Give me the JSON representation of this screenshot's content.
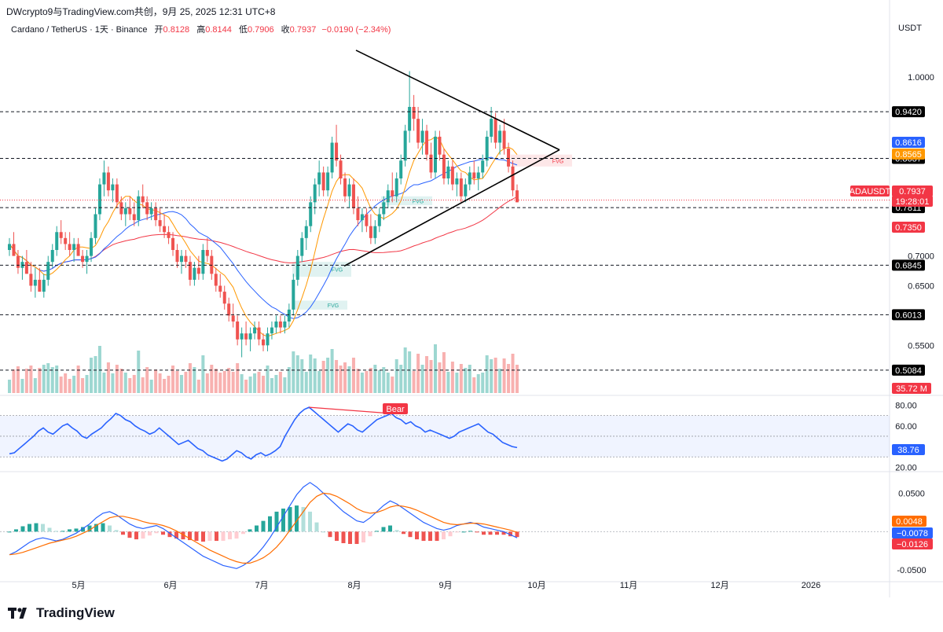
{
  "header": {
    "top_title": "DWcrypto9与TradingView.com共创，9月 25, 2025 12:31 UTC+8",
    "symbol_desc": "Cardano / TetherUS · 1天 · Binance",
    "open_label": "开",
    "open_value": "0.8128",
    "high_label": "高",
    "high_value": "0.8144",
    "low_label": "低",
    "low_value": "0.7906",
    "close_label": "收",
    "close_value": "0.7937",
    "change_value": "−0.0190 (−2.34%)",
    "currency": "USDT"
  },
  "brand": {
    "name": "TradingView",
    "icon": "tradingview-logo-icon"
  },
  "colors": {
    "up": "#26a69a",
    "down": "#ef5350",
    "ma_slow": "#f23645",
    "ma_mid": "#2962ff",
    "ma_fast": "#ff9800",
    "rsi": "#2962ff"
  },
  "chart_data": [
    {
      "type": "candlestick",
      "symbol": "ADAUSDT",
      "x_tick_labels": [
        "5月",
        "6月",
        "7月",
        "8月",
        "9月",
        "10月",
        "11月",
        "12月",
        "2026"
      ],
      "ylim": [
        0.47,
        1.07
      ],
      "y_tick_labels": [
        "1.0000",
        "0.7000",
        "0.6500",
        "0.5500"
      ],
      "ohlc": [
        [
          0.71,
          0.73,
          0.7,
          0.72
        ],
        [
          0.72,
          0.74,
          0.7,
          0.7
        ],
        [
          0.7,
          0.71,
          0.67,
          0.68
        ],
        [
          0.68,
          0.7,
          0.66,
          0.69
        ],
        [
          0.69,
          0.71,
          0.67,
          0.67
        ],
        [
          0.67,
          0.69,
          0.64,
          0.65
        ],
        [
          0.65,
          0.68,
          0.63,
          0.66
        ],
        [
          0.66,
          0.68,
          0.64,
          0.64
        ],
        [
          0.64,
          0.67,
          0.63,
          0.66
        ],
        [
          0.66,
          0.7,
          0.65,
          0.69
        ],
        [
          0.69,
          0.72,
          0.68,
          0.71
        ],
        [
          0.71,
          0.75,
          0.7,
          0.74
        ],
        [
          0.74,
          0.76,
          0.72,
          0.73
        ],
        [
          0.73,
          0.74,
          0.71,
          0.72
        ],
        [
          0.72,
          0.74,
          0.7,
          0.71
        ],
        [
          0.71,
          0.73,
          0.69,
          0.72
        ],
        [
          0.72,
          0.73,
          0.7,
          0.7
        ],
        [
          0.7,
          0.71,
          0.68,
          0.69
        ],
        [
          0.69,
          0.71,
          0.67,
          0.7
        ],
        [
          0.7,
          0.74,
          0.69,
          0.73
        ],
        [
          0.73,
          0.78,
          0.72,
          0.77
        ],
        [
          0.77,
          0.83,
          0.76,
          0.82
        ],
        [
          0.82,
          0.86,
          0.8,
          0.84
        ],
        [
          0.84,
          0.85,
          0.8,
          0.81
        ],
        [
          0.81,
          0.83,
          0.79,
          0.82
        ],
        [
          0.82,
          0.83,
          0.78,
          0.79
        ],
        [
          0.79,
          0.8,
          0.76,
          0.77
        ],
        [
          0.77,
          0.79,
          0.75,
          0.78
        ],
        [
          0.78,
          0.8,
          0.76,
          0.77
        ],
        [
          0.77,
          0.79,
          0.75,
          0.76
        ],
        [
          0.76,
          0.81,
          0.75,
          0.8
        ],
        [
          0.8,
          0.82,
          0.78,
          0.79
        ],
        [
          0.79,
          0.8,
          0.76,
          0.77
        ],
        [
          0.77,
          0.79,
          0.76,
          0.78
        ],
        [
          0.78,
          0.79,
          0.75,
          0.76
        ],
        [
          0.76,
          0.78,
          0.74,
          0.75
        ],
        [
          0.75,
          0.77,
          0.73,
          0.74
        ],
        [
          0.74,
          0.75,
          0.72,
          0.73
        ],
        [
          0.73,
          0.74,
          0.7,
          0.71
        ],
        [
          0.71,
          0.72,
          0.68,
          0.69
        ],
        [
          0.69,
          0.71,
          0.67,
          0.7
        ],
        [
          0.7,
          0.71,
          0.68,
          0.69
        ],
        [
          0.69,
          0.7,
          0.65,
          0.66
        ],
        [
          0.66,
          0.69,
          0.65,
          0.68
        ],
        [
          0.68,
          0.7,
          0.66,
          0.67
        ],
        [
          0.67,
          0.72,
          0.66,
          0.71
        ],
        [
          0.71,
          0.73,
          0.69,
          0.7
        ],
        [
          0.7,
          0.71,
          0.66,
          0.67
        ],
        [
          0.67,
          0.68,
          0.64,
          0.65
        ],
        [
          0.65,
          0.67,
          0.63,
          0.64
        ],
        [
          0.64,
          0.65,
          0.61,
          0.62
        ],
        [
          0.62,
          0.63,
          0.59,
          0.6
        ],
        [
          0.6,
          0.62,
          0.58,
          0.59
        ],
        [
          0.59,
          0.6,
          0.55,
          0.56
        ],
        [
          0.56,
          0.58,
          0.53,
          0.57
        ],
        [
          0.57,
          0.59,
          0.55,
          0.56
        ],
        [
          0.56,
          0.58,
          0.54,
          0.57
        ],
        [
          0.57,
          0.59,
          0.56,
          0.58
        ],
        [
          0.58,
          0.59,
          0.55,
          0.56
        ],
        [
          0.56,
          0.57,
          0.54,
          0.55
        ],
        [
          0.55,
          0.58,
          0.54,
          0.57
        ],
        [
          0.57,
          0.59,
          0.56,
          0.58
        ],
        [
          0.58,
          0.6,
          0.57,
          0.59
        ],
        [
          0.59,
          0.6,
          0.57,
          0.58
        ],
        [
          0.58,
          0.6,
          0.57,
          0.59
        ],
        [
          0.59,
          0.62,
          0.58,
          0.61
        ],
        [
          0.61,
          0.67,
          0.6,
          0.66
        ],
        [
          0.66,
          0.71,
          0.65,
          0.7
        ],
        [
          0.7,
          0.74,
          0.69,
          0.73
        ],
        [
          0.73,
          0.76,
          0.71,
          0.75
        ],
        [
          0.75,
          0.8,
          0.74,
          0.79
        ],
        [
          0.79,
          0.83,
          0.77,
          0.82
        ],
        [
          0.82,
          0.86,
          0.8,
          0.84
        ],
        [
          0.84,
          0.85,
          0.8,
          0.81
        ],
        [
          0.81,
          0.85,
          0.8,
          0.84
        ],
        [
          0.84,
          0.9,
          0.83,
          0.89
        ],
        [
          0.89,
          0.92,
          0.85,
          0.86
        ],
        [
          0.86,
          0.87,
          0.82,
          0.83
        ],
        [
          0.83,
          0.84,
          0.79,
          0.8
        ],
        [
          0.8,
          0.83,
          0.78,
          0.82
        ],
        [
          0.82,
          0.83,
          0.77,
          0.78
        ],
        [
          0.78,
          0.8,
          0.75,
          0.76
        ],
        [
          0.76,
          0.78,
          0.74,
          0.77
        ],
        [
          0.77,
          0.78,
          0.74,
          0.75
        ],
        [
          0.75,
          0.77,
          0.72,
          0.73
        ],
        [
          0.73,
          0.76,
          0.72,
          0.75
        ],
        [
          0.75,
          0.78,
          0.74,
          0.77
        ],
        [
          0.77,
          0.8,
          0.76,
          0.79
        ],
        [
          0.79,
          0.82,
          0.78,
          0.81
        ],
        [
          0.81,
          0.84,
          0.79,
          0.8
        ],
        [
          0.8,
          0.84,
          0.79,
          0.83
        ],
        [
          0.83,
          0.87,
          0.82,
          0.86
        ],
        [
          0.86,
          0.92,
          0.85,
          0.91
        ],
        [
          0.91,
          1.01,
          0.89,
          0.95
        ],
        [
          0.95,
          0.97,
          0.91,
          0.93
        ],
        [
          0.93,
          0.95,
          0.88,
          0.89
        ],
        [
          0.89,
          0.93,
          0.87,
          0.91
        ],
        [
          0.91,
          0.92,
          0.86,
          0.87
        ],
        [
          0.87,
          0.89,
          0.83,
          0.84
        ],
        [
          0.84,
          0.91,
          0.83,
          0.9
        ],
        [
          0.9,
          0.91,
          0.86,
          0.87
        ],
        [
          0.87,
          0.88,
          0.82,
          0.83
        ],
        [
          0.83,
          0.86,
          0.82,
          0.85
        ],
        [
          0.85,
          0.86,
          0.81,
          0.82
        ],
        [
          0.82,
          0.84,
          0.8,
          0.83
        ],
        [
          0.83,
          0.84,
          0.79,
          0.8
        ],
        [
          0.8,
          0.83,
          0.79,
          0.82
        ],
        [
          0.82,
          0.85,
          0.81,
          0.84
        ],
        [
          0.84,
          0.86,
          0.82,
          0.83
        ],
        [
          0.83,
          0.85,
          0.81,
          0.84
        ],
        [
          0.84,
          0.87,
          0.83,
          0.86
        ],
        [
          0.86,
          0.91,
          0.85,
          0.9
        ],
        [
          0.9,
          0.95,
          0.89,
          0.93
        ],
        [
          0.93,
          0.94,
          0.88,
          0.89
        ],
        [
          0.89,
          0.92,
          0.87,
          0.91
        ],
        [
          0.91,
          0.93,
          0.87,
          0.88
        ],
        [
          0.88,
          0.89,
          0.84,
          0.85
        ],
        [
          0.85,
          0.86,
          0.8,
          0.81
        ],
        [
          0.81,
          0.82,
          0.79,
          0.79
        ]
      ],
      "volume_value_label": "35.72 M",
      "moving_averages": {
        "fast_label": "0.8565",
        "mid_label": "0.8616",
        "slow_label": "0.7350"
      },
      "price_levels": [
        {
          "label": "0.9420",
          "value": 0.942,
          "style": "dashed"
        },
        {
          "label": "0.8637",
          "value": 0.8637,
          "style": "dashed"
        },
        {
          "label": "0.7811",
          "value": 0.7811,
          "style": "dashed"
        },
        {
          "label": "0.6845",
          "value": 0.6845,
          "style": "dashed"
        },
        {
          "label": "0.6013",
          "value": 0.6013,
          "style": "dashed"
        },
        {
          "label": "0.5084",
          "value": 0.5084,
          "style": "dashed"
        }
      ],
      "current_price": {
        "symbol": "ADAUSDT",
        "value": "0.7937",
        "countdown": "19:28:01"
      },
      "zones": [
        {
          "label": "FVG",
          "kind": "bearish",
          "y_range": [
            0.85,
            0.87
          ]
        },
        {
          "label": "FVG",
          "kind": "bullish",
          "y_range": [
            0.785,
            0.8
          ]
        },
        {
          "label": "FVG",
          "kind": "bullish",
          "y_range": [
            0.665,
            0.69
          ]
        },
        {
          "label": "FVG",
          "kind": "bullish",
          "y_range": [
            0.61,
            0.625
          ]
        }
      ],
      "triangle_pattern": {
        "upper_from": 1.045,
        "apex": 0.878,
        "lower_from": 0.683
      }
    },
    {
      "type": "line",
      "name": "RSI",
      "ylim": [
        18,
        88
      ],
      "y_tick_labels": [
        "80.00",
        "60.00",
        "20.00"
      ],
      "band": [
        30,
        70
      ],
      "midline": 50,
      "current_label": "38.76",
      "values": [
        33,
        34,
        38,
        42,
        46,
        50,
        55,
        58,
        54,
        52,
        56,
        60,
        62,
        58,
        55,
        50,
        48,
        52,
        55,
        58,
        63,
        67,
        72,
        70,
        66,
        64,
        60,
        57,
        55,
        52,
        54,
        58,
        54,
        50,
        46,
        42,
        44,
        46,
        42,
        38,
        36,
        32,
        30,
        28,
        26,
        28,
        32,
        36,
        34,
        30,
        28,
        32,
        34,
        31,
        33,
        36,
        40,
        50,
        58,
        66,
        72,
        76,
        78,
        74,
        70,
        66,
        62,
        58,
        54,
        58,
        62,
        60,
        56,
        54,
        58,
        62,
        66,
        68,
        70,
        72,
        68,
        66,
        62,
        64,
        60,
        58,
        54,
        56,
        54,
        52,
        50,
        48,
        50,
        54,
        56,
        58,
        60,
        62,
        58,
        54,
        52,
        48,
        44,
        42,
        40,
        39
      ],
      "divergence": {
        "label": "Bear"
      }
    },
    {
      "type": "line",
      "name": "MACD",
      "ylim": [
        -0.06,
        0.075
      ],
      "y_tick_labels": [
        "0.0500",
        "-0.0500"
      ],
      "labels": [
        "0.0048",
        "−0.0078",
        "−0.0126"
      ],
      "macd": [
        -0.03,
        -0.026,
        -0.02,
        -0.014,
        -0.01,
        -0.008,
        -0.01,
        -0.012,
        -0.01,
        -0.006,
        -0.002,
        0.004,
        0.01,
        0.018,
        0.024,
        0.026,
        0.022,
        0.016,
        0.01,
        0.006,
        0.004,
        0.006,
        0.008,
        0.004,
        -0.002,
        -0.008,
        -0.014,
        -0.02,
        -0.026,
        -0.032,
        -0.036,
        -0.04,
        -0.044,
        -0.046,
        -0.048,
        -0.044,
        -0.038,
        -0.03,
        -0.02,
        -0.008,
        0.006,
        0.02,
        0.034,
        0.048,
        0.058,
        0.064,
        0.058,
        0.05,
        0.042,
        0.034,
        0.026,
        0.02,
        0.014,
        0.012,
        0.018,
        0.026,
        0.034,
        0.04,
        0.036,
        0.03,
        0.024,
        0.018,
        0.012,
        0.008,
        0.004,
        0.002,
        0.004,
        0.008,
        0.01,
        0.012,
        0.01,
        0.006,
        0.004,
        0.002,
        0.0,
        -0.004,
        -0.008
      ],
      "signal": [
        -0.03,
        -0.029,
        -0.027,
        -0.024,
        -0.021,
        -0.018,
        -0.015,
        -0.013,
        -0.011,
        -0.009,
        -0.006,
        -0.002,
        0.002,
        0.008,
        0.013,
        0.018,
        0.02,
        0.02,
        0.018,
        0.016,
        0.013,
        0.011,
        0.01,
        0.008,
        0.005,
        0.001,
        -0.004,
        -0.009,
        -0.014,
        -0.019,
        -0.024,
        -0.028,
        -0.032,
        -0.036,
        -0.039,
        -0.041,
        -0.041,
        -0.038,
        -0.034,
        -0.028,
        -0.02,
        -0.01,
        0.002,
        0.014,
        0.026,
        0.038,
        0.046,
        0.05,
        0.049,
        0.046,
        0.041,
        0.036,
        0.03,
        0.026,
        0.024,
        0.025,
        0.028,
        0.032,
        0.034,
        0.033,
        0.031,
        0.028,
        0.024,
        0.02,
        0.016,
        0.012,
        0.01,
        0.009,
        0.01,
        0.011,
        0.011,
        0.01,
        0.008,
        0.006,
        0.004,
        0.002,
        -0.001
      ]
    }
  ]
}
